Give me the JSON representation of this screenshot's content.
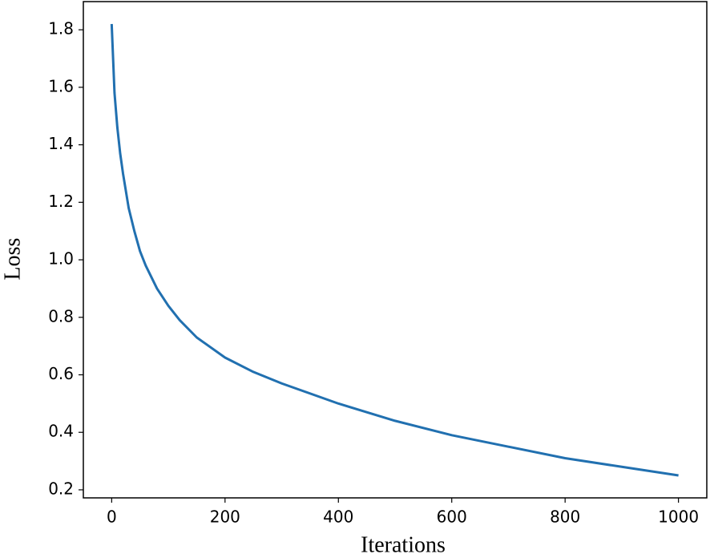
{
  "chart_data": {
    "type": "line",
    "x_label": "Iterations",
    "y_label": "Loss",
    "x": [
      0,
      5,
      10,
      15,
      20,
      30,
      40,
      50,
      60,
      80,
      100,
      120,
      150,
      200,
      250,
      300,
      400,
      500,
      600,
      700,
      800,
      900,
      1000
    ],
    "series": [
      {
        "name": "Loss",
        "color": "#2170b0",
        "values": [
          1.82,
          1.58,
          1.46,
          1.37,
          1.3,
          1.18,
          1.1,
          1.03,
          0.98,
          0.9,
          0.84,
          0.79,
          0.73,
          0.66,
          0.61,
          0.57,
          0.5,
          0.44,
          0.39,
          0.35,
          0.31,
          0.28,
          0.25
        ]
      }
    ],
    "xlim": [
      -50,
      1050
    ],
    "ylim": [
      0.172,
      1.898
    ],
    "xticks": [
      0,
      200,
      400,
      600,
      800,
      1000
    ],
    "yticks": [
      0.2,
      0.4,
      0.6,
      0.8,
      {
        "value": 1,
        "label": "1.0"
      },
      1.2,
      1.4,
      1.6,
      1.8
    ],
    "grid": false
  }
}
